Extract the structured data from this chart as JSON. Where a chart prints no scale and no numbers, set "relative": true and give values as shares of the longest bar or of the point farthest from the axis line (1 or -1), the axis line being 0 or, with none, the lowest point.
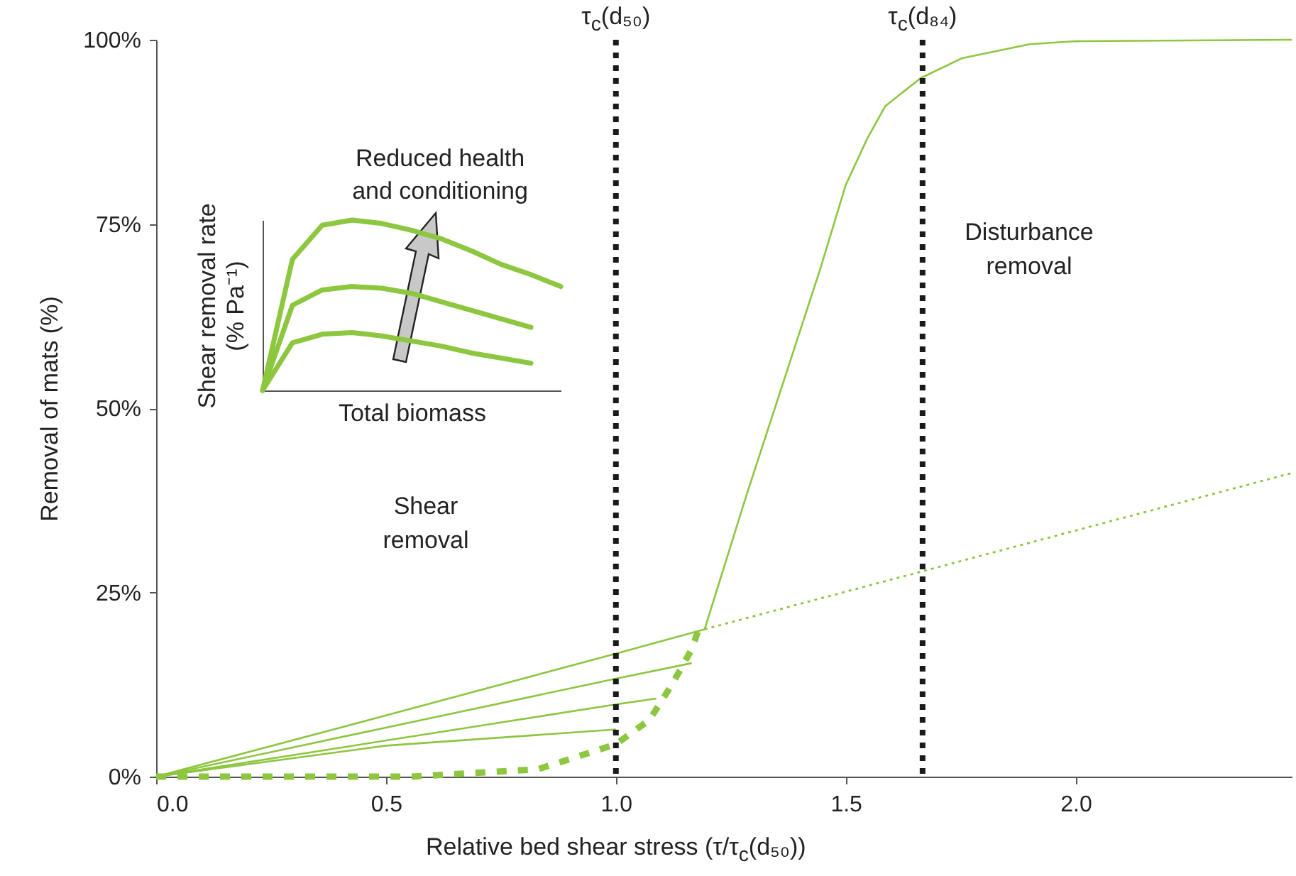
{
  "chart_data": [
    {
      "type": "line",
      "xlabel": "Relative bed shear stress (τ/τ$_{c}$(d₅₀))",
      "ylabel": "Removal of mats (%)",
      "xlim": [
        0,
        2.47
      ],
      "ylim": [
        0,
        100
      ],
      "xticks": [
        {
          "value": 0,
          "label": "0.0"
        },
        {
          "value": 0.5,
          "label": "0.5"
        },
        {
          "value": 1,
          "label": "1.0"
        },
        {
          "value": 1.5,
          "label": "1.5"
        },
        {
          "value": 2,
          "label": "2.0"
        }
      ],
      "yticks": [
        {
          "value": 0,
          "label": "0%"
        },
        {
          "value": 25,
          "label": "25%"
        },
        {
          "value": 50,
          "label": "50%"
        },
        {
          "value": 75,
          "label": "75%"
        },
        {
          "value": 100,
          "label": "100%"
        }
      ],
      "series": [
        {
          "color": "#8dc63f",
          "line_style": "solid",
          "x": [
            0,
            0.5,
            1.0,
            1.1,
            1.193,
            1.283,
            1.444,
            1.5,
            1.546,
            1.586,
            1.663,
            1.753,
            1.9,
            2.0,
            2.47
          ],
          "values": [
            0,
            8.3,
            16.7,
            18.4,
            20,
            38,
            68.8,
            80.3,
            86.5,
            91,
            94.8,
            97.5,
            99.4,
            99.8,
            100
          ]
        },
        {
          "color": "#8dc63f",
          "line_style": "solid",
          "x": [
            0,
            1.0,
            1.165
          ],
          "values": [
            0,
            13.3,
            15.4
          ]
        },
        {
          "color": "#8dc63f",
          "line_style": "solid",
          "x": [
            0,
            1.0,
            1.088
          ],
          "values": [
            0,
            9.8,
            10.6
          ]
        },
        {
          "color": "#8dc63f",
          "line_style": "solid",
          "x": [
            0,
            0.5,
            1.0
          ],
          "values": [
            0,
            4.2,
            6.4
          ]
        },
        {
          "color": "#8dc63f",
          "line_style": "dotted",
          "x": [
            1.193,
            2.47
          ],
          "values": [
            20,
            41.2
          ]
        },
        {
          "color": "#8dc63f",
          "line_style": "dashed",
          "x": [
            0,
            0.556,
            0.83,
            0.906,
            1.0,
            1.073,
            1.122,
            1.165,
            1.18
          ],
          "values": [
            0,
            0,
            1,
            2.5,
            4.4,
            7.7,
            12.5,
            17.3,
            20
          ]
        }
      ],
      "ref_lines": [
        {
          "axis": "x",
          "value": 1.0,
          "label": "τ$_{c}$(d₅₀)",
          "color": "#1a1a1a",
          "line_style": "dotted"
        },
        {
          "axis": "x",
          "value": 1.667,
          "label": "τ$_{c}$(d₈₄)",
          "color": "#1a1a1a",
          "line_style": "dotted"
        }
      ],
      "annotations": [
        "Shear removal",
        "Disturbance removal"
      ]
    },
    {
      "type": "line",
      "relative": true,
      "categories": [
        null,
        null,
        null,
        null,
        null,
        null,
        null,
        null,
        null,
        null,
        null
      ],
      "xlabel": "Total biomass",
      "ylabel": "Shear removal rate (% Pa⁻¹)",
      "annotations": [
        "Reduced health and conditioning"
      ],
      "series": [
        {
          "color": "#8dc63f",
          "values": [
            0,
            0.77,
            0.97,
            1,
            0.98,
            0.94,
            0.89,
            0.82,
            0.74,
            0.68,
            0.61
          ]
        },
        {
          "color": "#8dc63f",
          "values": [
            0,
            0.5,
            0.59,
            0.61,
            0.6,
            0.57,
            0.52,
            0.47,
            0.42,
            0.37,
            null
          ]
        },
        {
          "color": "#8dc63f",
          "values": [
            0,
            0.28,
            0.33,
            0.34,
            0.32,
            0.29,
            0.26,
            0.22,
            0.19,
            0.16,
            null
          ]
        }
      ]
    }
  ]
}
